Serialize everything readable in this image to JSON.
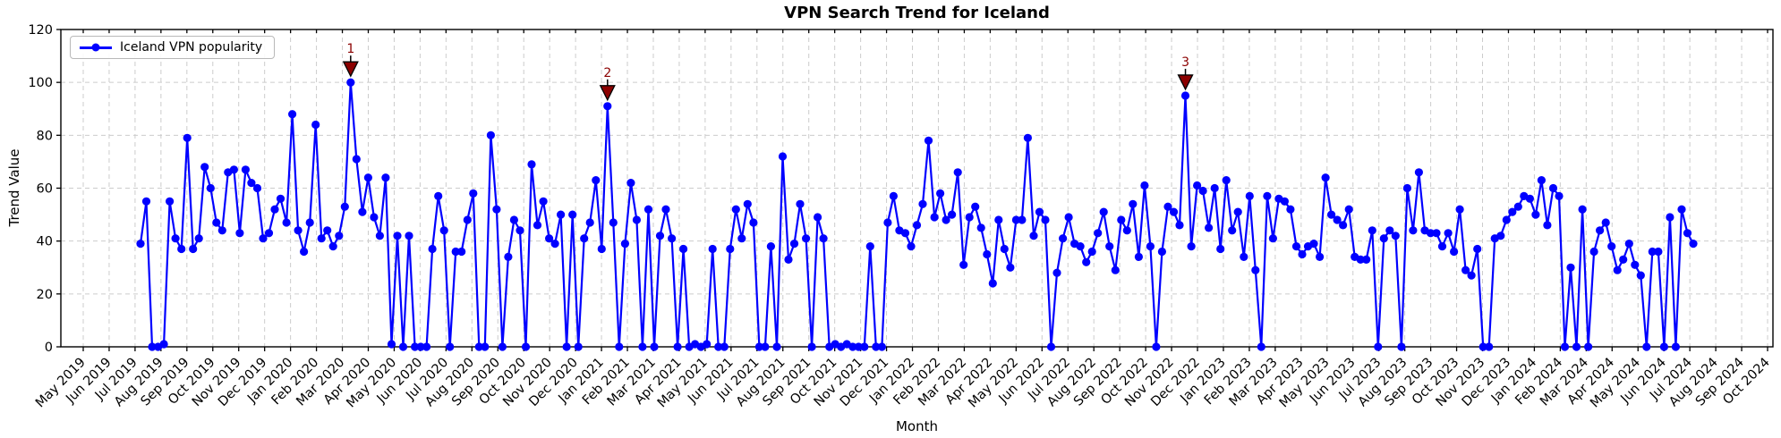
{
  "chart_data": {
    "type": "line",
    "title": "VPN Search Trend for Iceland",
    "xlabel": "Month",
    "ylabel": "Trend Value",
    "legend": {
      "position": "upper-left",
      "entries": [
        "Iceland VPN popularity"
      ]
    },
    "ylim": [
      0,
      120
    ],
    "y_ticks": [
      0,
      20,
      40,
      60,
      80,
      100,
      120
    ],
    "grid": "dashed",
    "x_tick_labels": [
      "May 2019",
      "Jun 2019",
      "Jul 2019",
      "Aug 2019",
      "Sep 2019",
      "Oct 2019",
      "Nov 2019",
      "Dec 2019",
      "Jan 2020",
      "Feb 2020",
      "Mar 2020",
      "Apr 2020",
      "May 2020",
      "Jun 2020",
      "Jul 2020",
      "Aug 2020",
      "Sep 2020",
      "Oct 2020",
      "Nov 2020",
      "Dec 2020",
      "Jan 2021",
      "Feb 2021",
      "Mar 2021",
      "Apr 2021",
      "May 2021",
      "Jun 2021",
      "Jul 2021",
      "Aug 2021",
      "Sep 2021",
      "Oct 2021",
      "Nov 2021",
      "Dec 2021",
      "Jan 2022",
      "Feb 2022",
      "Mar 2022",
      "Apr 2022",
      "May 2022",
      "Jun 2022",
      "Jul 2022",
      "Aug 2022",
      "Sep 2022",
      "Oct 2022",
      "Nov 2022",
      "Dec 2022",
      "Jan 2023",
      "Feb 2023",
      "Mar 2023",
      "Apr 2023",
      "May 2023",
      "Jun 2023",
      "Jul 2023",
      "Aug 2023",
      "Sep 2023",
      "Oct 2023",
      "Nov 2023",
      "Dec 2023",
      "Jan 2024",
      "Feb 2024",
      "Mar 2024",
      "Apr 2024",
      "May 2024",
      "Jun 2024",
      "Jul 2024",
      "Aug 2024",
      "Sep 2024",
      "Oct 2024"
    ],
    "series": [
      {
        "name": "Iceland VPN popularity",
        "frequency": "weekly",
        "start": "Jul 2019",
        "end": "Jul 2024",
        "values": [
          39,
          55,
          0,
          0,
          1,
          55,
          41,
          37,
          79,
          37,
          41,
          68,
          60,
          47,
          44,
          66,
          67,
          43,
          67,
          62,
          60,
          41,
          43,
          52,
          56,
          47,
          88,
          44,
          36,
          47,
          84,
          41,
          44,
          38,
          42,
          53,
          100,
          71,
          51,
          64,
          49,
          42,
          64,
          1,
          42,
          0,
          42,
          0,
          0,
          0,
          37,
          57,
          44,
          0,
          36,
          36,
          48,
          58,
          0,
          0,
          80,
          52,
          0,
          34,
          48,
          44,
          0,
          69,
          46,
          55,
          41,
          39,
          50,
          0,
          50,
          0,
          41,
          47,
          63,
          37,
          91,
          47,
          0,
          39,
          62,
          48,
          0,
          52,
          0,
          42,
          52,
          41,
          0,
          37,
          0,
          1,
          0,
          1,
          37,
          0,
          0,
          37,
          52,
          41,
          54,
          47,
          0,
          0,
          38,
          0,
          72,
          33,
          39,
          54,
          41,
          0,
          49,
          41,
          0,
          1,
          0,
          1,
          0,
          0,
          0,
          38,
          0,
          0,
          47,
          57,
          44,
          43,
          38,
          46,
          54,
          78,
          49,
          58,
          48,
          50,
          66,
          31,
          49,
          53,
          45,
          35,
          24,
          48,
          37,
          30,
          48,
          48,
          79,
          42,
          51,
          48,
          0,
          28,
          41,
          49,
          39,
          38,
          32,
          36,
          43,
          51,
          38,
          29,
          48,
          44,
          54,
          34,
          61,
          38,
          0,
          36,
          53,
          51,
          46,
          95,
          38,
          61,
          59,
          45,
          60,
          37,
          63,
          44,
          51,
          34,
          57,
          29,
          0,
          57,
          41,
          56,
          55,
          52,
          38,
          35,
          38,
          39,
          34,
          64,
          50,
          48,
          46,
          52,
          34,
          33,
          33,
          44,
          0,
          41,
          44,
          42,
          0,
          60,
          44,
          66,
          44,
          43,
          43,
          38,
          43,
          36,
          52,
          29,
          27,
          37,
          0,
          0,
          41,
          42,
          48,
          51,
          53,
          57,
          56,
          50,
          63,
          46,
          60,
          57,
          0,
          30,
          0,
          52,
          0,
          36,
          44,
          47,
          38,
          29,
          33,
          39,
          31,
          27,
          0,
          36,
          36,
          0,
          49,
          0,
          52,
          43,
          39
        ]
      }
    ],
    "annotations": [
      {
        "label": "1",
        "value": 100
      },
      {
        "label": "2",
        "value": 91
      },
      {
        "label": "3",
        "value": 95
      }
    ],
    "colors": {
      "line": "#0000ff",
      "marker": "#0000ff",
      "annotation": "#8b0000",
      "annotation_edge": "#000000",
      "grid": "#cccccc",
      "axes": "#000000"
    }
  },
  "legend_entry": "Iceland VPN popularity"
}
